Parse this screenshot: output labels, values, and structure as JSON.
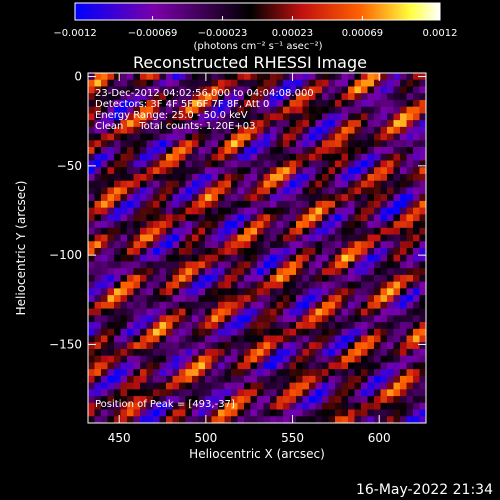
{
  "chart_data": {
    "type": "heatmap",
    "title": "Reconstructed RHESSI Image",
    "xlabel": "Heliocentric X (arcsec)",
    "ylabel": "Heliocentric Y (arcsec)",
    "xlim": [
      432,
      627
    ],
    "ylim": [
      -194,
      2
    ],
    "x_ticks": [
      450,
      500,
      550,
      600
    ],
    "x_tick_labels": [
      "450",
      "500",
      "550",
      "600"
    ],
    "y_ticks": [
      0,
      -50,
      -100,
      -150
    ],
    "y_tick_labels": [
      "0",
      "−50",
      "−100",
      "−150"
    ],
    "grid": false,
    "colorbar": {
      "range": [
        -0.0012,
        0.0012
      ],
      "ticks": [
        -0.0012,
        -0.00069,
        -0.00023,
        0.00023,
        0.00069,
        0.0012
      ],
      "tick_labels": [
        "−0.0012",
        "−0.00069",
        "−0.00023",
        "0.00023",
        "0.00069",
        "0.0012"
      ],
      "units_label": "(photons cm⁻² s⁻¹ asec⁻²)",
      "colors": [
        "#0000ff",
        "#7a00a8",
        "#000000",
        "#c01010",
        "#ff6000",
        "#ffff40",
        "#ffffff"
      ]
    },
    "annotations": [
      "23-Dec-2012 04:02:56.000 to 04:04:08.000",
      "Detectors: 3F 4F 5F 6F 7F 8F, Att 0",
      "Energy Range: 25.0 - 50.0 keV",
      "Clean     Total counts: 1.20E+03"
    ],
    "peak_label": "Position of Peak = [493,-37]",
    "peak": [
      493,
      -37
    ]
  },
  "footer": {
    "date": "16-May-2022 21:34"
  }
}
